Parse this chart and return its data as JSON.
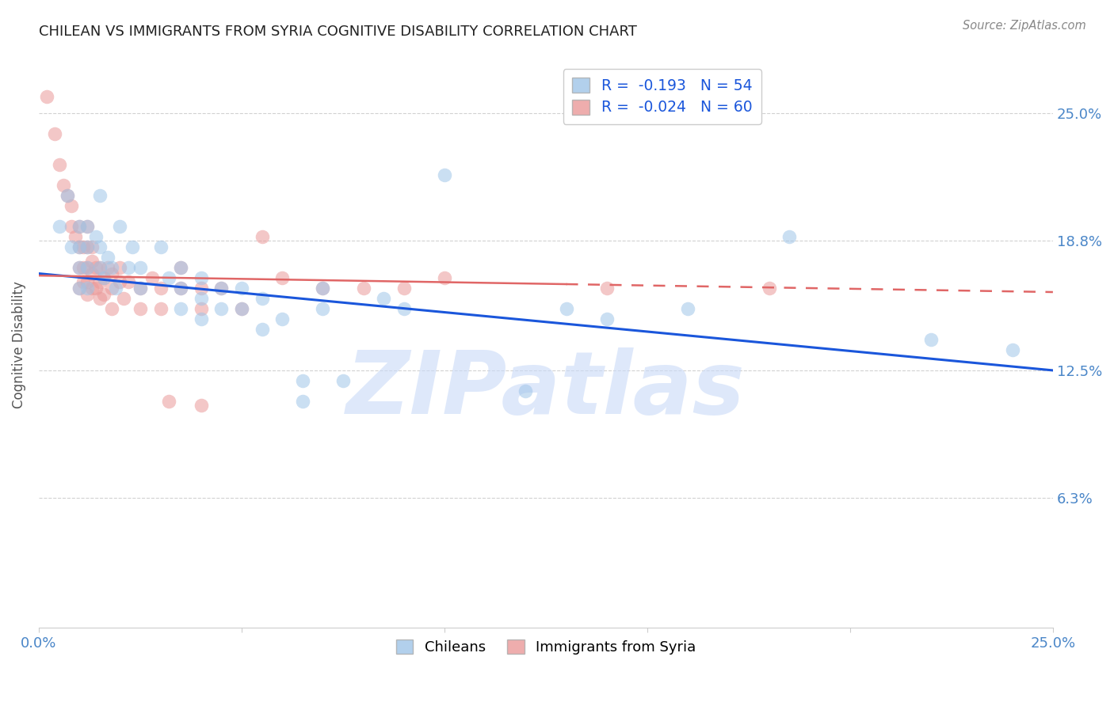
{
  "title": "CHILEAN VS IMMIGRANTS FROM SYRIA COGNITIVE DISABILITY CORRELATION CHART",
  "source": "Source: ZipAtlas.com",
  "ylabel": "Cognitive Disability",
  "ytick_labels": [
    "25.0%",
    "18.8%",
    "12.5%",
    "6.3%"
  ],
  "ytick_values": [
    0.25,
    0.188,
    0.125,
    0.063
  ],
  "xlim": [
    0.0,
    0.25
  ],
  "ylim": [
    0.0,
    0.275
  ],
  "legend_blue_r": "-0.193",
  "legend_blue_n": "54",
  "legend_pink_r": "-0.024",
  "legend_pink_n": "60",
  "blue_color": "#9fc5e8",
  "pink_color": "#ea9999",
  "blue_line_color": "#1a56db",
  "pink_line_color": "#e06666",
  "blue_scatter": [
    [
      0.005,
      0.195
    ],
    [
      0.007,
      0.21
    ],
    [
      0.008,
      0.185
    ],
    [
      0.01,
      0.195
    ],
    [
      0.01,
      0.185
    ],
    [
      0.01,
      0.175
    ],
    [
      0.01,
      0.165
    ],
    [
      0.012,
      0.195
    ],
    [
      0.012,
      0.185
    ],
    [
      0.012,
      0.175
    ],
    [
      0.012,
      0.165
    ],
    [
      0.014,
      0.19
    ],
    [
      0.015,
      0.21
    ],
    [
      0.015,
      0.185
    ],
    [
      0.015,
      0.175
    ],
    [
      0.016,
      0.17
    ],
    [
      0.017,
      0.18
    ],
    [
      0.018,
      0.175
    ],
    [
      0.019,
      0.165
    ],
    [
      0.02,
      0.195
    ],
    [
      0.022,
      0.175
    ],
    [
      0.023,
      0.185
    ],
    [
      0.025,
      0.175
    ],
    [
      0.025,
      0.165
    ],
    [
      0.03,
      0.185
    ],
    [
      0.032,
      0.17
    ],
    [
      0.035,
      0.175
    ],
    [
      0.035,
      0.165
    ],
    [
      0.035,
      0.155
    ],
    [
      0.04,
      0.17
    ],
    [
      0.04,
      0.16
    ],
    [
      0.04,
      0.15
    ],
    [
      0.045,
      0.165
    ],
    [
      0.045,
      0.155
    ],
    [
      0.05,
      0.165
    ],
    [
      0.05,
      0.155
    ],
    [
      0.055,
      0.16
    ],
    [
      0.055,
      0.145
    ],
    [
      0.06,
      0.15
    ],
    [
      0.065,
      0.12
    ],
    [
      0.065,
      0.11
    ],
    [
      0.07,
      0.165
    ],
    [
      0.07,
      0.155
    ],
    [
      0.075,
      0.12
    ],
    [
      0.085,
      0.16
    ],
    [
      0.09,
      0.155
    ],
    [
      0.1,
      0.22
    ],
    [
      0.12,
      0.115
    ],
    [
      0.13,
      0.155
    ],
    [
      0.14,
      0.15
    ],
    [
      0.16,
      0.155
    ],
    [
      0.185,
      0.19
    ],
    [
      0.22,
      0.14
    ],
    [
      0.24,
      0.135
    ]
  ],
  "pink_scatter": [
    [
      0.002,
      0.258
    ],
    [
      0.004,
      0.24
    ],
    [
      0.005,
      0.225
    ],
    [
      0.006,
      0.215
    ],
    [
      0.007,
      0.21
    ],
    [
      0.008,
      0.205
    ],
    [
      0.008,
      0.195
    ],
    [
      0.009,
      0.19
    ],
    [
      0.01,
      0.195
    ],
    [
      0.01,
      0.185
    ],
    [
      0.01,
      0.175
    ],
    [
      0.01,
      0.165
    ],
    [
      0.011,
      0.185
    ],
    [
      0.011,
      0.175
    ],
    [
      0.011,
      0.168
    ],
    [
      0.012,
      0.195
    ],
    [
      0.012,
      0.185
    ],
    [
      0.012,
      0.175
    ],
    [
      0.012,
      0.168
    ],
    [
      0.012,
      0.162
    ],
    [
      0.013,
      0.185
    ],
    [
      0.013,
      0.178
    ],
    [
      0.013,
      0.172
    ],
    [
      0.013,
      0.165
    ],
    [
      0.014,
      0.175
    ],
    [
      0.014,
      0.165
    ],
    [
      0.015,
      0.175
    ],
    [
      0.015,
      0.168
    ],
    [
      0.015,
      0.16
    ],
    [
      0.016,
      0.17
    ],
    [
      0.016,
      0.162
    ],
    [
      0.017,
      0.175
    ],
    [
      0.018,
      0.172
    ],
    [
      0.018,
      0.165
    ],
    [
      0.018,
      0.155
    ],
    [
      0.02,
      0.175
    ],
    [
      0.02,
      0.168
    ],
    [
      0.021,
      0.16
    ],
    [
      0.022,
      0.168
    ],
    [
      0.025,
      0.165
    ],
    [
      0.025,
      0.155
    ],
    [
      0.028,
      0.17
    ],
    [
      0.03,
      0.165
    ],
    [
      0.03,
      0.155
    ],
    [
      0.032,
      0.11
    ],
    [
      0.035,
      0.175
    ],
    [
      0.035,
      0.165
    ],
    [
      0.04,
      0.165
    ],
    [
      0.04,
      0.155
    ],
    [
      0.04,
      0.108
    ],
    [
      0.045,
      0.165
    ],
    [
      0.05,
      0.155
    ],
    [
      0.055,
      0.19
    ],
    [
      0.06,
      0.17
    ],
    [
      0.07,
      0.165
    ],
    [
      0.08,
      0.165
    ],
    [
      0.09,
      0.165
    ],
    [
      0.1,
      0.17
    ],
    [
      0.14,
      0.165
    ],
    [
      0.18,
      0.165
    ]
  ],
  "background_color": "#ffffff",
  "grid_color": "#cccccc",
  "watermark": "ZIPatlas",
  "watermark_color": "#c9daf8",
  "blue_trend_x0": 0.0,
  "blue_trend_y0": 0.172,
  "blue_trend_x1": 0.25,
  "blue_trend_y1": 0.125,
  "pink_trend_x0": 0.0,
  "pink_trend_y0": 0.171,
  "pink_trend_x1": 0.25,
  "pink_trend_y1": 0.163
}
